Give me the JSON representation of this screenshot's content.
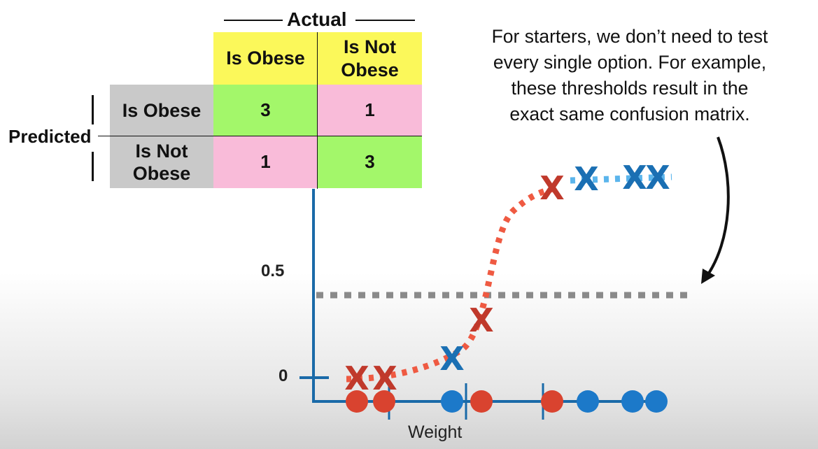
{
  "matrix": {
    "actual_title": "Actual",
    "predicted_title": "Predicted",
    "col_headers": [
      "Is Obese",
      "Is Not Obese"
    ],
    "row_headers": [
      "Is Obese",
      "Is Not Obese"
    ],
    "values": [
      [
        "3",
        "1"
      ],
      [
        "1",
        "3"
      ]
    ]
  },
  "annotation": "For starters, we don’t need to test\nevery single option. For example,\nthese thresholds result in the\nexact same confusion matrix.",
  "axis": {
    "y_ticks": [
      "0.5",
      "0"
    ],
    "x_label": "Weight"
  },
  "markers": {
    "curve": [
      {
        "label": "X",
        "class": "obese"
      },
      {
        "label": "X",
        "class": "obese"
      },
      {
        "label": "X",
        "class": "not-obese"
      },
      {
        "label": "X",
        "class": "obese"
      },
      {
        "label": "X",
        "class": "obese"
      },
      {
        "label": "X",
        "class": "not-obese"
      },
      {
        "label": "X",
        "class": "not-obese"
      },
      {
        "label": "X",
        "class": "not-obese"
      }
    ],
    "dots": [
      "obese",
      "obese",
      "not-obese",
      "obese",
      "obese",
      "not-obese",
      "not-obese",
      "not-obese"
    ]
  },
  "colors": {
    "obese": "#c0392b",
    "not_obese": "#1a6fb3",
    "dot_obese": "#d9432f",
    "dot_not_obese": "#1c79c9",
    "axis": "#1a6aa8",
    "curve_red": "#ef5a42",
    "curve_blue": "#5bb5ec",
    "threshold": "#8a8a8a"
  }
}
